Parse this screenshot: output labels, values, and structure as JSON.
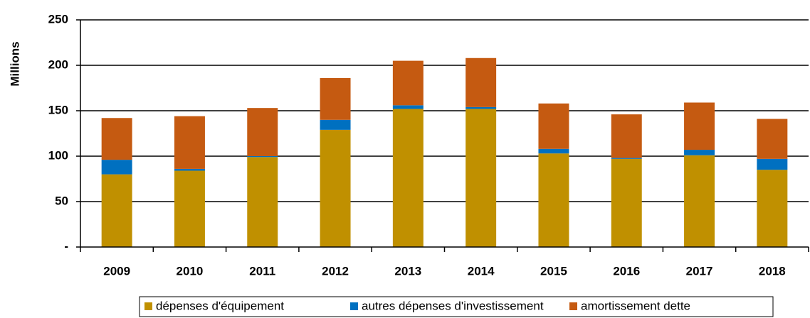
{
  "chart_data": {
    "type": "stacked_bar",
    "y_label": "Millions",
    "categories": [
      "2009",
      "2010",
      "2011",
      "2012",
      "2013",
      "2014",
      "2015",
      "2016",
      "2017",
      "2018"
    ],
    "series": [
      {
        "name": "dépenses d'équipement",
        "color": "#c09000",
        "values": [
          80,
          84,
          99,
          129,
          152,
          152,
          103,
          97,
          101,
          85
        ]
      },
      {
        "name": "autres dépenses d'investissement",
        "color": "#0070c0",
        "values": [
          16,
          2,
          1,
          11,
          4,
          2,
          5,
          1,
          6,
          12
        ]
      },
      {
        "name": "amortissement dette",
        "color": "#c55a11",
        "values": [
          46,
          58,
          53,
          46,
          49,
          54,
          50,
          48,
          52,
          44
        ]
      }
    ],
    "ylim": [
      0,
      250
    ],
    "yticks": [
      {
        "value": 0,
        "label": "-"
      },
      50,
      100,
      150,
      200,
      250
    ],
    "grid": true,
    "legend": "bottom"
  }
}
